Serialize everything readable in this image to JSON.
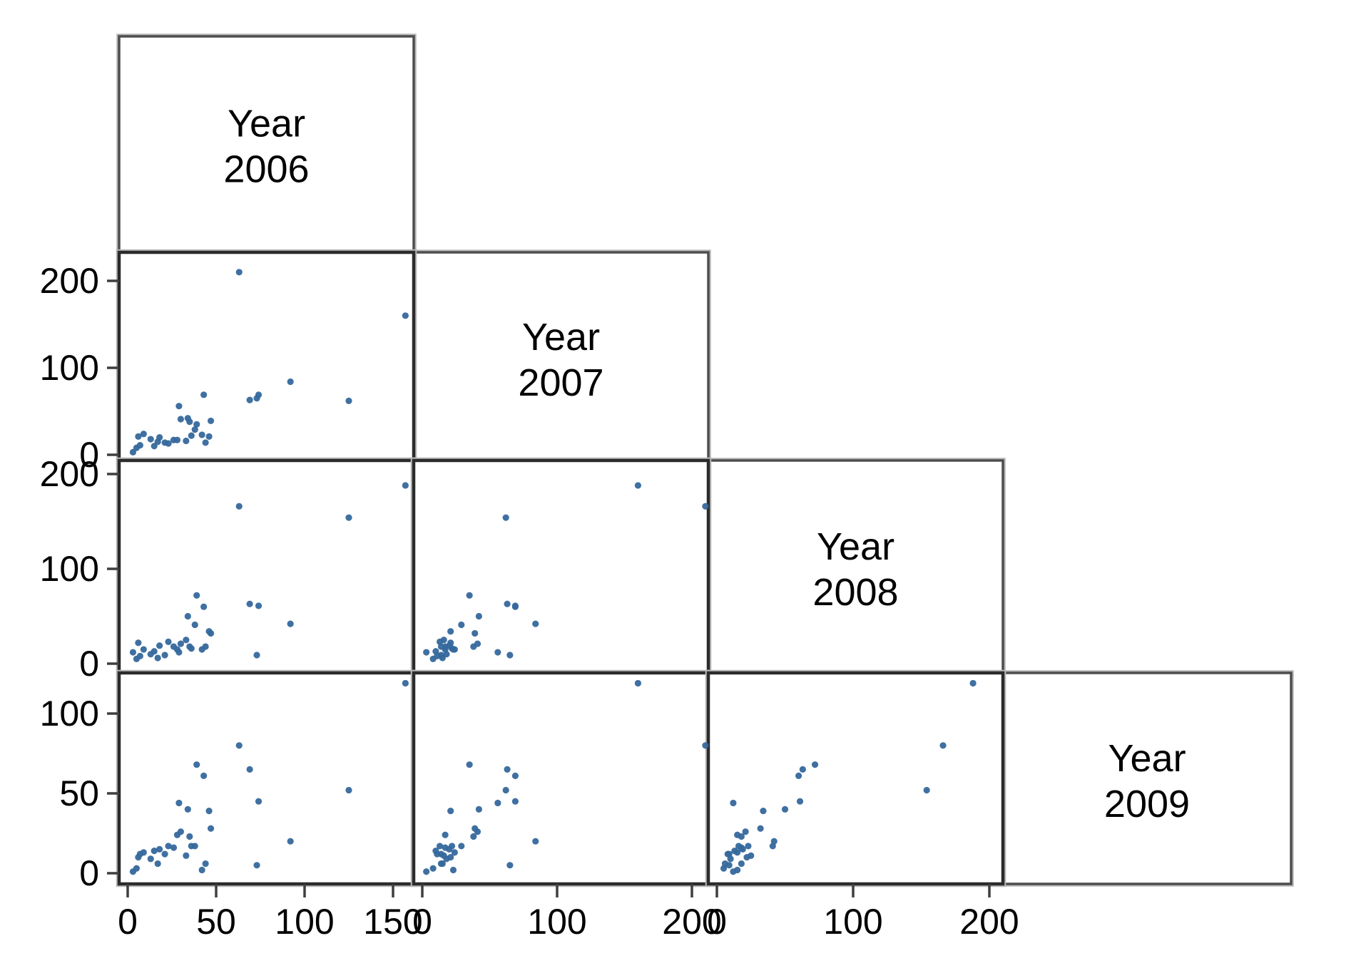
{
  "figure": {
    "kind": "scatterplot-matrix",
    "background_color": "#ffffff",
    "marker_color": "#35689c",
    "panel_border_color": "#2b2b2b",
    "diag_border_color": "#4e4e4e",
    "halo_border_color": "#b8b8b8",
    "tick_color": "#3f3f3f",
    "text_color": "#000000"
  },
  "chart_data": {
    "type": "scatter",
    "layout": "lower-triangle scatterplot matrix (each off-diagonal panel plots row variable vs column variable; diagonal cells hold variable labels)",
    "title": "",
    "legend": null,
    "grid": false,
    "variables": [
      "Year 2006",
      "Year 2007",
      "Year 2008",
      "Year 2009"
    ],
    "diagonal_labels": [
      {
        "line1": "Year",
        "line2": "2006"
      },
      {
        "line1": "Year",
        "line2": "2007"
      },
      {
        "line1": "Year",
        "line2": "2008"
      },
      {
        "line1": "Year",
        "line2": "2009"
      }
    ],
    "axes": {
      "2006": {
        "ticks": [
          0,
          50,
          100,
          150
        ],
        "range": [
          -5,
          162
        ],
        "shown_on": "x-axis of column 1"
      },
      "2007": {
        "ticks": [
          0,
          100,
          200
        ],
        "range": [
          -8,
          233
        ],
        "shown_on": "y-axis row 2 and x-axis column 2"
      },
      "2008": {
        "ticks": [
          0,
          100,
          200
        ],
        "range": [
          -10,
          214
        ],
        "shown_on": "y-axis row 3 and x-axis column 3"
      },
      "2009": {
        "ticks": [
          0,
          50,
          100
        ],
        "range": [
          -7,
          125
        ],
        "shown_on": "y-axis row 4"
      },
      "tick_label_format": "integer"
    },
    "panels": [
      {
        "x_var": "2006",
        "y_var": "2007",
        "grid_row": 2,
        "grid_col": 1
      },
      {
        "x_var": "2006",
        "y_var": "2008",
        "grid_row": 3,
        "grid_col": 1
      },
      {
        "x_var": "2007",
        "y_var": "2008",
        "grid_row": 3,
        "grid_col": 2
      },
      {
        "x_var": "2006",
        "y_var": "2009",
        "grid_row": 4,
        "grid_col": 1
      },
      {
        "x_var": "2007",
        "y_var": "2009",
        "grid_row": 4,
        "grid_col": 2
      },
      {
        "x_var": "2008",
        "y_var": "2009",
        "grid_row": 4,
        "grid_col": 3
      }
    ],
    "observation_columns": [
      "2006",
      "2007",
      "2008",
      "2009"
    ],
    "observations": [
      [
        63,
        210,
        166,
        80
      ],
      [
        157,
        160,
        188,
        119
      ],
      [
        125,
        62,
        154,
        52
      ],
      [
        92,
        84,
        42,
        20
      ],
      [
        39,
        35,
        72,
        68
      ],
      [
        43,
        69,
        60,
        61
      ],
      [
        69,
        63,
        63,
        65
      ],
      [
        74,
        69,
        61,
        45
      ],
      [
        34,
        42,
        50,
        40
      ],
      [
        29,
        56,
        12,
        44
      ],
      [
        47,
        39,
        32,
        28
      ],
      [
        73,
        65,
        9,
        5
      ],
      [
        5,
        8,
        5,
        3
      ],
      [
        6,
        21,
        22,
        10
      ],
      [
        9,
        24,
        15,
        13
      ],
      [
        13,
        18,
        10,
        9
      ],
      [
        17,
        15,
        6,
        6
      ],
      [
        18,
        20,
        19,
        15
      ],
      [
        21,
        14,
        9,
        12
      ],
      [
        23,
        13,
        23,
        17
      ],
      [
        26,
        17,
        18,
        16
      ],
      [
        28,
        17,
        15,
        24
      ],
      [
        30,
        41,
        21,
        26
      ],
      [
        33,
        16,
        25,
        11
      ],
      [
        35,
        38,
        18,
        23
      ],
      [
        36,
        22,
        16,
        17
      ],
      [
        38,
        29,
        41,
        17
      ],
      [
        42,
        23,
        15,
        2
      ],
      [
        44,
        14,
        18,
        6
      ],
      [
        3,
        3,
        12,
        1
      ],
      [
        7,
        11,
        8,
        12
      ],
      [
        15,
        10,
        13,
        14
      ],
      [
        46,
        21,
        34,
        39
      ]
    ]
  }
}
